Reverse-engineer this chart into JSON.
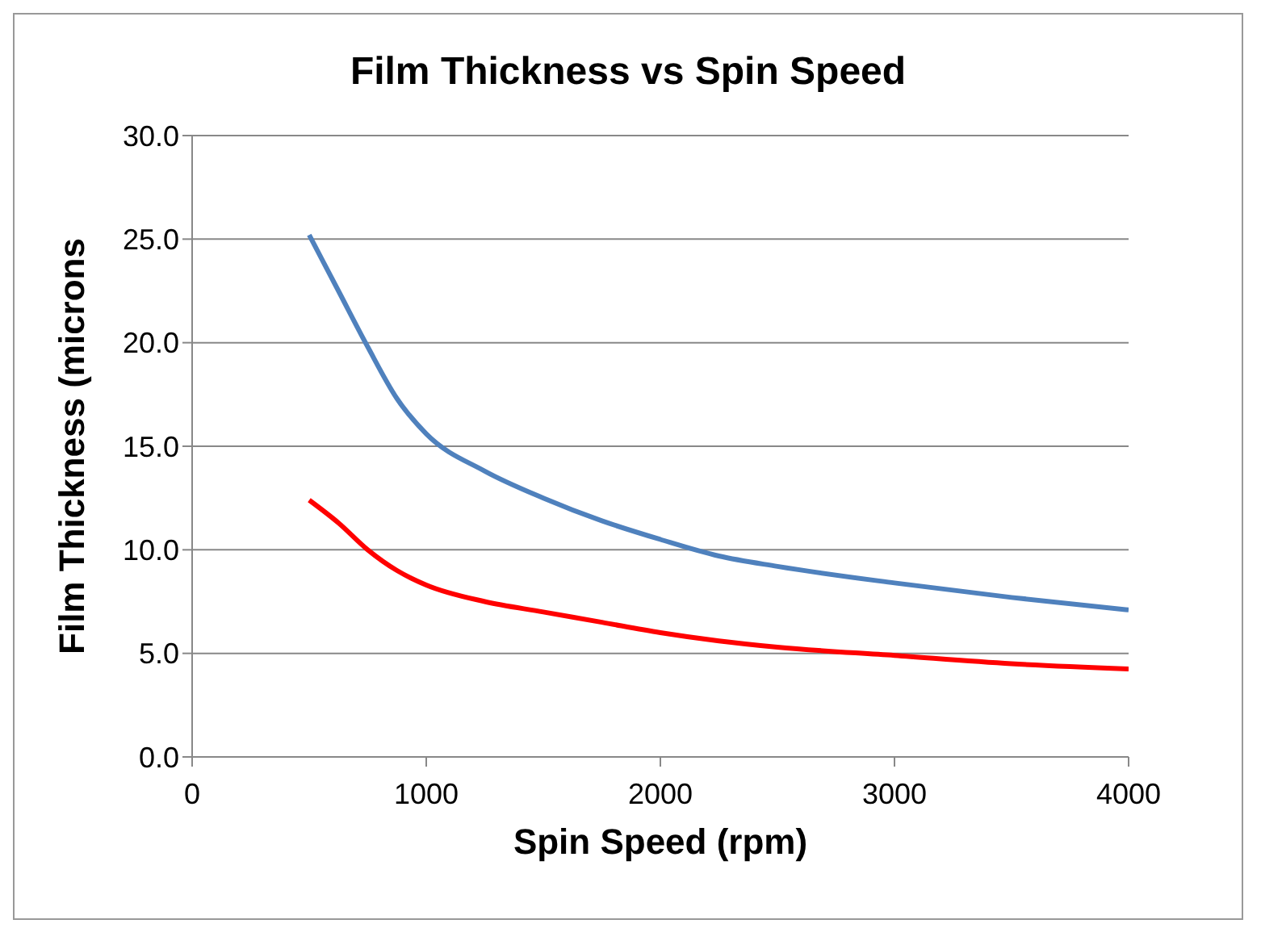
{
  "chart_data": {
    "type": "line",
    "title": "Film Thickness vs Spin Speed",
    "xlabel": "Spin Speed (rpm)",
    "ylabel": "Film Thickness (microns",
    "series": [
      {
        "color": "#4f81bd",
        "x": [
          500,
          625,
          750,
          875,
          1000,
          1250,
          1500,
          1750,
          2000,
          2250,
          2500,
          3000,
          3500,
          4000
        ],
        "values": [
          25.2,
          22.5,
          19.8,
          17.3,
          15.6,
          13.8,
          12.5,
          11.4,
          10.5,
          9.7,
          9.2,
          8.4,
          7.7,
          7.1
        ]
      },
      {
        "color": "#ff0000",
        "x": [
          500,
          625,
          750,
          875,
          1000,
          1250,
          1500,
          1750,
          2000,
          2250,
          2500,
          3000,
          3500,
          4000
        ],
        "values": [
          12.4,
          11.3,
          10.0,
          9.0,
          8.3,
          7.5,
          7.0,
          6.5,
          6.0,
          5.6,
          5.3,
          4.9,
          4.5,
          4.25
        ]
      }
    ],
    "xlim": [
      0,
      4000
    ],
    "xticks": [
      0,
      1000,
      2000,
      3000,
      4000
    ],
    "ylim": [
      0,
      30
    ],
    "yticks": [
      {
        "value": 0,
        "label": "0.0"
      },
      {
        "value": 5,
        "label": "5.0"
      },
      {
        "value": 10,
        "label": "10.0"
      },
      {
        "value": 15,
        "label": "15.0"
      },
      {
        "value": 20,
        "label": "20.0"
      },
      {
        "value": 25,
        "label": "25.0"
      },
      {
        "value": 30,
        "label": "30.0"
      }
    ],
    "grid": "y",
    "marker": "none",
    "line_style": "solid"
  }
}
